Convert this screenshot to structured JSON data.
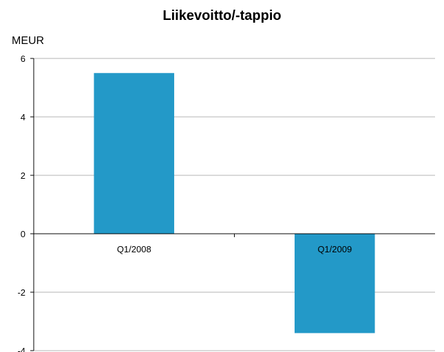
{
  "chart_data": {
    "type": "bar",
    "title": "Liikevoitto/-tappio",
    "ylabel": "MEUR",
    "xlabel": "",
    "categories": [
      "Q1/2008",
      "Q1/2009"
    ],
    "values": [
      5.5,
      -3.4
    ],
    "ylim": [
      -4,
      6
    ],
    "yticks": [
      -4,
      -2,
      0,
      2,
      4,
      6
    ],
    "ytick_labels": [
      "-4",
      "-2",
      "0",
      "2",
      "4",
      "6"
    ],
    "grid": true,
    "legend": "none",
    "colors": {
      "bar": "#2399c8",
      "grid": "#b3b3b3",
      "axis": "#000000"
    }
  }
}
